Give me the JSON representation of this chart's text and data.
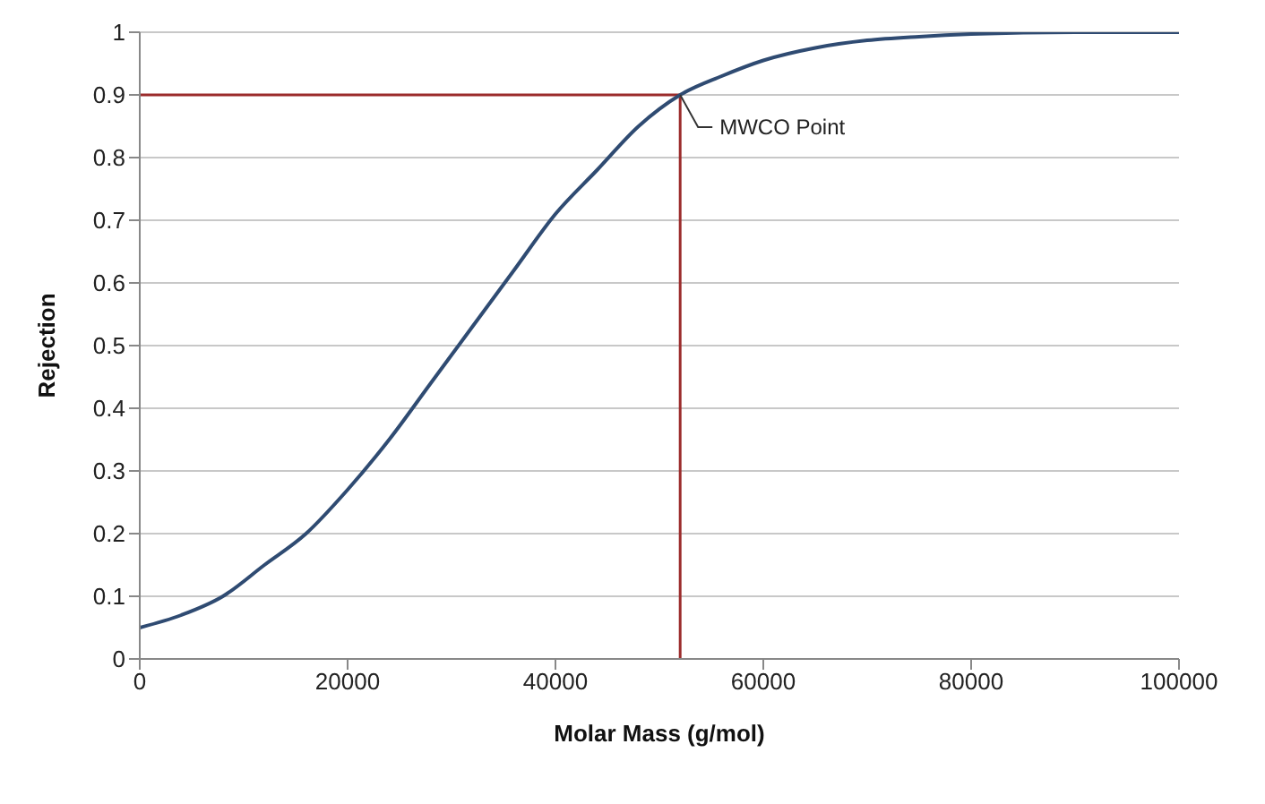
{
  "chart_data": {
    "type": "line",
    "xlabel": "Molar Mass (g/mol)",
    "ylabel": "Rejection",
    "x": [
      0,
      4000,
      8000,
      12000,
      16000,
      20000,
      24000,
      28000,
      32000,
      36000,
      40000,
      44000,
      48000,
      52000,
      56000,
      60000,
      65000,
      70000,
      75000,
      80000,
      90000,
      100000
    ],
    "series": [
      {
        "color": "#2f4b72",
        "values": [
          0.05,
          0.07,
          0.1,
          0.15,
          0.2,
          0.27,
          0.35,
          0.44,
          0.53,
          0.62,
          0.71,
          0.78,
          0.85,
          0.9,
          0.93,
          0.955,
          0.975,
          0.987,
          0.993,
          0.997,
          1.0,
          1.0
        ]
      }
    ],
    "xlim": [
      0,
      100000
    ],
    "xticks": [
      0,
      20000,
      40000,
      60000,
      80000,
      100000
    ],
    "ylim": [
      0,
      1
    ],
    "yticks": [
      0,
      0.1,
      0.2,
      0.3,
      0.4,
      0.5,
      0.6,
      0.7,
      0.8,
      0.9,
      1
    ],
    "grid": "y",
    "marker": "none",
    "line_style": "solid",
    "ref_lines": [
      {
        "axis": "y",
        "value": 0.9,
        "color": "#9b2b2b"
      },
      {
        "axis": "x",
        "value": 52000,
        "color": "#9b2b2b"
      }
    ],
    "annotations": [
      {
        "text": "MWCO Point",
        "x": 52000,
        "y": 0.9
      }
    ]
  }
}
